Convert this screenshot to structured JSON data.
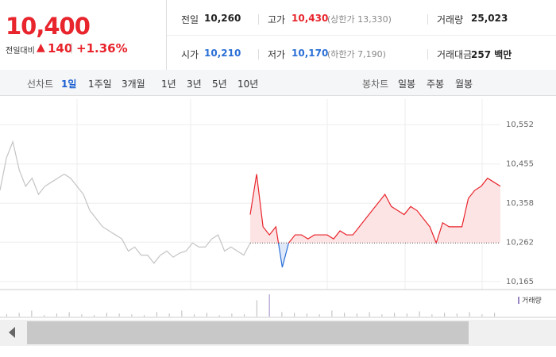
{
  "header": {
    "price": "10,400",
    "change_label": "전일대비",
    "change": "140",
    "rate": "+1.36%",
    "stats": [
      [
        {
          "label": "전일",
          "value": "10,260"
        },
        {
          "label": "고가",
          "value": "10,430",
          "note": "(상한가 13,330)"
        },
        {
          "label": "거래량",
          "value": "25,023"
        }
      ],
      [
        {
          "label": "시가",
          "value": "10,210"
        },
        {
          "label": "저가",
          "value": "10,170",
          "note": "(하한가 7,190)"
        },
        {
          "label": "거래대금",
          "value": "257 백만"
        }
      ]
    ]
  },
  "toolbar": {
    "line_label": "선차트",
    "line_tabs": [
      "1일",
      "1주일",
      "3개월",
      "1년",
      "3년",
      "5년",
      "10년"
    ],
    "candle_label": "봉차트",
    "candle_tabs": [
      "일봉",
      "주봉",
      "월봉"
    ]
  },
  "chart_data": {
    "type": "line",
    "baseline": 10260,
    "up_color": "#e8242c",
    "down_color": "#2a6fd6",
    "ylim": [
      10145,
      10615
    ],
    "yticks": [
      {
        "value": 10165,
        "label": "10,165"
      },
      {
        "value": 10262,
        "label": "10,262"
      },
      {
        "value": 10358,
        "label": "10,358"
      },
      {
        "value": 10455,
        "label": "10,455"
      },
      {
        "value": 10552,
        "label": "10,552"
      }
    ],
    "grid": true,
    "series": [
      {
        "color": "#c4c4c4",
        "values": [
          10390,
          10470,
          10510,
          10440,
          10400,
          10420,
          10380,
          10400,
          10410,
          10420,
          10430,
          10420,
          10400,
          10380,
          10340,
          10320,
          10300,
          10290,
          10280,
          10270,
          10240,
          10250,
          10230,
          10230,
          10210,
          10230,
          10240,
          10225,
          10235,
          10240,
          10260,
          10250,
          10250,
          10270,
          10280,
          10240,
          10250,
          10240,
          10230,
          10260
        ]
      },
      {
        "color": "#e8242c",
        "values": [
          10330,
          10430,
          10300,
          10280,
          10300,
          10200,
          10260,
          10280,
          10280,
          10270,
          10280,
          10280,
          10280,
          10270,
          10290,
          10280,
          10280,
          10300,
          10320,
          10340,
          10360,
          10380,
          10350,
          10340,
          10330,
          10350,
          10340,
          10320,
          10300,
          10260,
          10310,
          10300,
          10300,
          10300,
          10370,
          10390,
          10400,
          10420,
          10410,
          10400
        ]
      }
    ],
    "volume": {
      "label": "거래량",
      "color": "#9a86c4",
      "values": [
        3,
        5,
        8,
        2,
        4,
        6,
        3,
        2,
        5,
        4,
        3,
        2,
        6,
        4,
        8,
        3,
        5,
        2,
        4,
        3,
        22,
        30,
        6,
        5,
        4,
        3,
        8,
        5,
        4,
        6,
        3,
        5,
        4,
        7,
        3,
        5,
        4,
        6,
        3,
        5
      ]
    }
  }
}
